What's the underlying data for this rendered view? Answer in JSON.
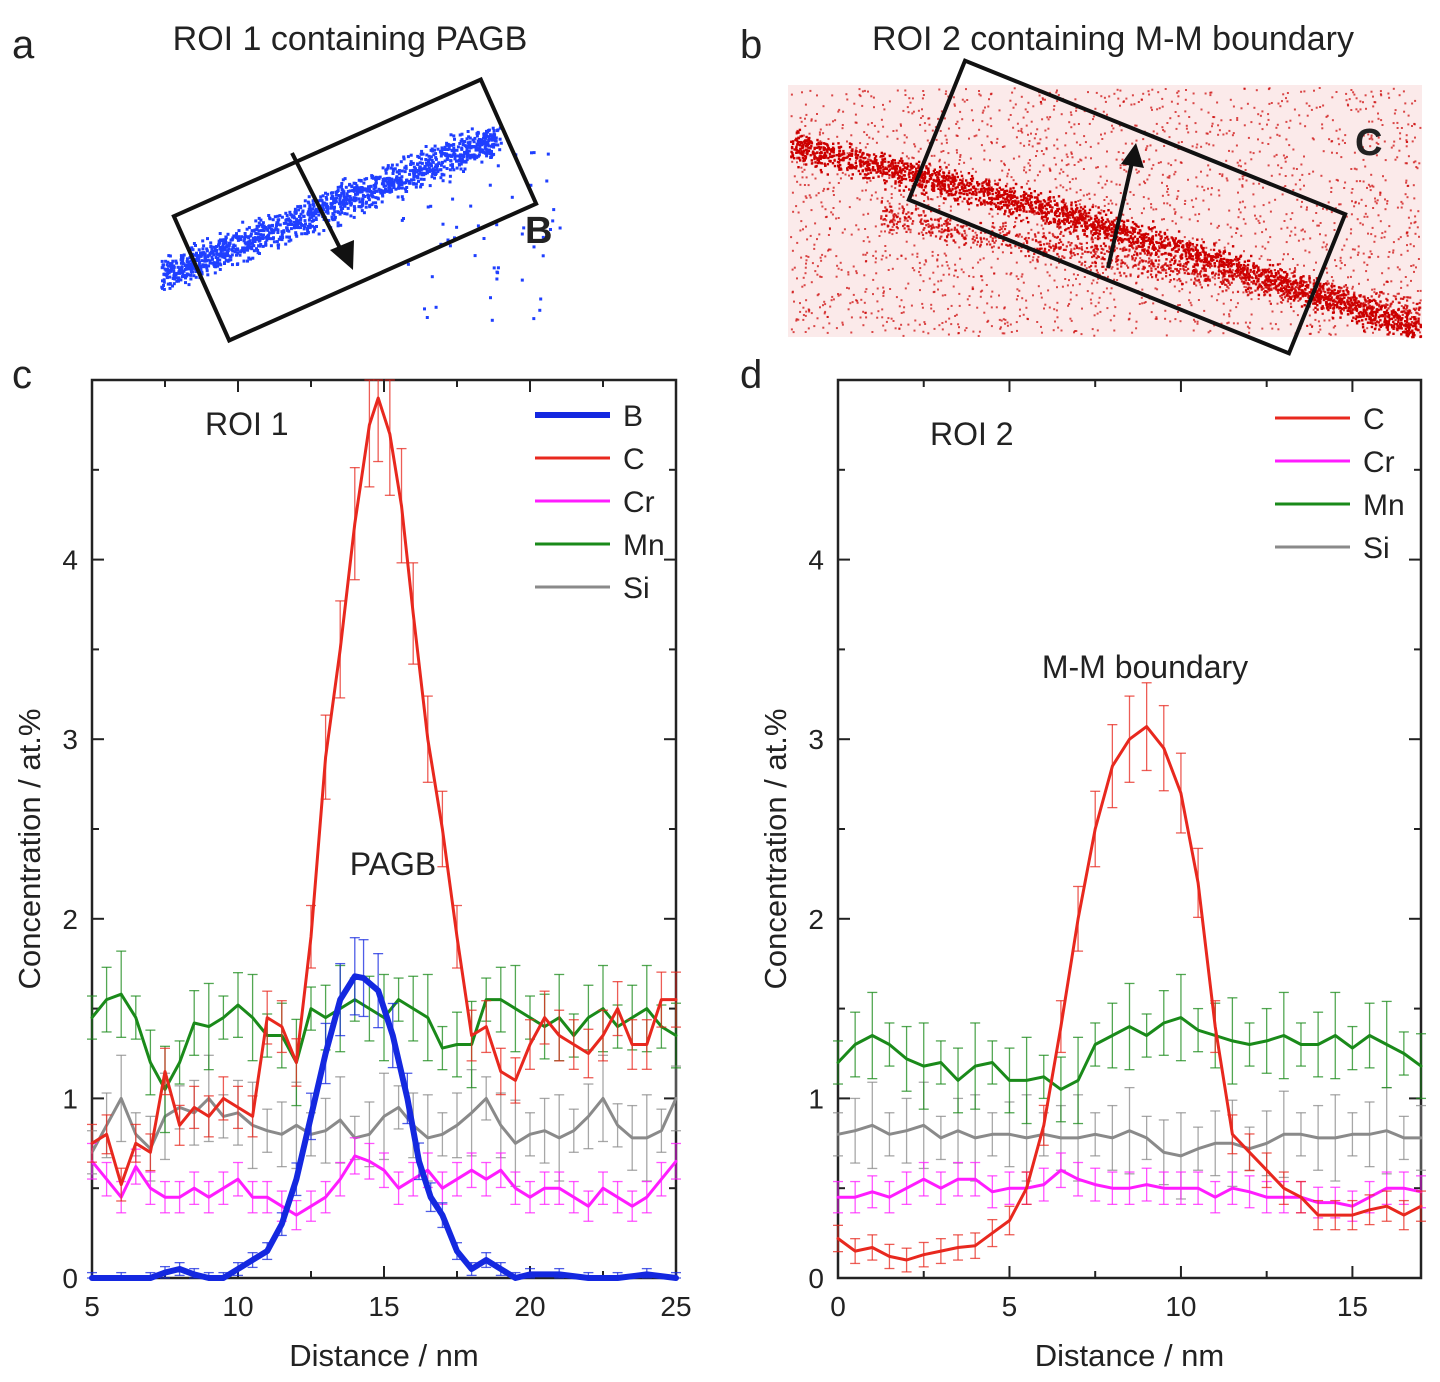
{
  "panels": {
    "a": {
      "letter": "a",
      "title": "ROI 1 containing PAGB",
      "element_label": "B",
      "dot_color": "#1f3fff",
      "label_color": "#2b2bd0"
    },
    "b": {
      "letter": "b",
      "title": "ROI 2 containing M-M boundary",
      "element_label": "C",
      "dot_color": "#cc0000",
      "label_color": "#d01818"
    }
  },
  "chart_data": [
    {
      "type": "line",
      "letter": "c",
      "annotation": "ROI 1",
      "feature_label": "PAGB",
      "xlabel": "Distance / nm",
      "ylabel": "Concentration / at.%",
      "xlim": [
        5,
        25
      ],
      "ylim": [
        0,
        5
      ],
      "xticks": [
        5,
        10,
        15,
        20,
        25
      ],
      "yticks": [
        0,
        1,
        2,
        3,
        4
      ],
      "legend_position": "top-right",
      "series": [
        {
          "name": "B",
          "color": "#1428e0",
          "width": 6,
          "x": [
            5,
            6,
            7,
            7.5,
            8,
            8.5,
            9,
            9.5,
            10,
            10.5,
            11,
            11.5,
            12,
            12.5,
            13,
            13.5,
            14,
            14.3,
            14.8,
            15.3,
            15.8,
            16.2,
            16.6,
            17,
            17.5,
            18,
            18.5,
            19,
            19.5,
            20,
            21,
            22,
            23,
            24,
            25
          ],
          "y": [
            0,
            0,
            0,
            0.03,
            0.05,
            0.02,
            0,
            0,
            0.05,
            0.1,
            0.15,
            0.3,
            0.55,
            0.9,
            1.25,
            1.55,
            1.68,
            1.67,
            1.6,
            1.35,
            1.0,
            0.65,
            0.45,
            0.35,
            0.15,
            0.05,
            0.1,
            0.05,
            0,
            0.02,
            0.02,
            0,
            0,
            0.02,
            0
          ]
        },
        {
          "name": "C",
          "color": "#e8281e",
          "width": 3,
          "x": [
            5,
            5.5,
            6,
            6.5,
            7,
            7.5,
            8,
            8.5,
            9,
            9.5,
            10,
            10.5,
            11,
            11.5,
            12,
            12.5,
            13,
            13.5,
            14,
            14.5,
            14.8,
            15.2,
            15.6,
            16,
            16.5,
            17,
            17.5,
            18,
            18.5,
            19,
            19.5,
            20,
            20.5,
            21,
            21.5,
            22,
            22.5,
            23,
            23.5,
            24,
            24.5,
            25
          ],
          "y": [
            0.75,
            0.8,
            0.52,
            0.75,
            0.7,
            1.15,
            0.85,
            0.95,
            0.9,
            1.0,
            0.95,
            0.9,
            1.45,
            1.4,
            1.2,
            1.9,
            2.9,
            3.5,
            4.2,
            4.75,
            4.9,
            4.7,
            4.3,
            3.7,
            3.0,
            2.5,
            1.9,
            1.35,
            1.4,
            1.15,
            1.1,
            1.3,
            1.45,
            1.35,
            1.3,
            1.25,
            1.35,
            1.5,
            1.3,
            1.3,
            1.55,
            1.55
          ]
        },
        {
          "name": "Cr",
          "color": "#ff1cff",
          "width": 3,
          "x": [
            5,
            5.5,
            6,
            6.5,
            7,
            7.5,
            8,
            8.5,
            9,
            9.5,
            10,
            10.5,
            11,
            11.5,
            12,
            12.5,
            13,
            13.5,
            14,
            14.5,
            15,
            15.5,
            16,
            16.5,
            17,
            17.5,
            18,
            18.5,
            19,
            19.5,
            20,
            20.5,
            21,
            21.5,
            22,
            22.5,
            23,
            23.5,
            24,
            24.5,
            25
          ],
          "y": [
            0.65,
            0.55,
            0.45,
            0.62,
            0.5,
            0.45,
            0.45,
            0.5,
            0.45,
            0.5,
            0.55,
            0.45,
            0.45,
            0.4,
            0.35,
            0.4,
            0.45,
            0.55,
            0.68,
            0.65,
            0.6,
            0.5,
            0.55,
            0.6,
            0.5,
            0.55,
            0.6,
            0.55,
            0.6,
            0.5,
            0.45,
            0.5,
            0.5,
            0.45,
            0.4,
            0.5,
            0.45,
            0.4,
            0.45,
            0.55,
            0.65
          ]
        },
        {
          "name": "Mn",
          "color": "#1a8a1a",
          "width": 3,
          "x": [
            5,
            5.5,
            6,
            6.5,
            7,
            7.5,
            8,
            8.5,
            9,
            9.5,
            10,
            10.5,
            11,
            11.5,
            12,
            12.5,
            13,
            13.5,
            14,
            14.5,
            15,
            15.5,
            16,
            16.5,
            17,
            17.5,
            18,
            18.5,
            19,
            19.5,
            20,
            20.5,
            21,
            21.5,
            22,
            22.5,
            23,
            23.5,
            24,
            24.5,
            25
          ],
          "y": [
            1.45,
            1.55,
            1.58,
            1.45,
            1.2,
            1.05,
            1.2,
            1.42,
            1.4,
            1.45,
            1.52,
            1.45,
            1.35,
            1.35,
            1.2,
            1.5,
            1.45,
            1.5,
            1.55,
            1.5,
            1.45,
            1.55,
            1.5,
            1.45,
            1.28,
            1.3,
            1.3,
            1.55,
            1.55,
            1.5,
            1.45,
            1.4,
            1.45,
            1.35,
            1.45,
            1.5,
            1.4,
            1.45,
            1.5,
            1.4,
            1.35
          ]
        },
        {
          "name": "Si",
          "color": "#8a8a8a",
          "width": 3,
          "x": [
            5,
            5.5,
            6,
            6.5,
            7,
            7.5,
            8,
            8.5,
            9,
            9.5,
            10,
            10.5,
            11,
            11.5,
            12,
            12.5,
            13,
            13.5,
            14,
            14.5,
            15,
            15.5,
            16,
            16.5,
            17,
            17.5,
            18,
            18.5,
            19,
            19.5,
            20,
            20.5,
            21,
            21.5,
            22,
            22.5,
            23,
            23.5,
            24,
            24.5,
            25
          ],
          "y": [
            0.7,
            0.85,
            1.0,
            0.8,
            0.72,
            0.9,
            0.95,
            0.92,
            1.0,
            0.9,
            0.92,
            0.85,
            0.82,
            0.8,
            0.85,
            0.8,
            0.82,
            0.88,
            0.78,
            0.8,
            0.9,
            0.95,
            0.85,
            0.78,
            0.8,
            0.85,
            0.92,
            1.0,
            0.85,
            0.75,
            0.8,
            0.82,
            0.78,
            0.82,
            0.9,
            1.0,
            0.85,
            0.78,
            0.78,
            0.82,
            1.0
          ]
        }
      ]
    },
    {
      "type": "line",
      "letter": "d",
      "annotation": "ROI 2",
      "feature_label": "M-M boundary",
      "xlabel": "Distance / nm",
      "ylabel": "Concentration / at.%",
      "xlim": [
        0,
        17
      ],
      "ylim": [
        0,
        5
      ],
      "xticks": [
        0,
        5,
        10,
        15
      ],
      "yticks": [
        0,
        1,
        2,
        3,
        4
      ],
      "legend_position": "top-right",
      "series": [
        {
          "name": "C",
          "color": "#e8281e",
          "width": 3,
          "x": [
            0,
            0.5,
            1,
            1.5,
            2,
            2.5,
            3,
            3.5,
            4,
            4.5,
            5,
            5.5,
            6,
            6.5,
            7,
            7.5,
            8,
            8.5,
            9,
            9.5,
            10,
            10.5,
            11,
            11.5,
            12,
            12.5,
            13,
            13.5,
            14,
            14.5,
            15,
            15.5,
            16,
            16.5,
            17
          ],
          "y": [
            0.22,
            0.15,
            0.17,
            0.12,
            0.1,
            0.13,
            0.15,
            0.17,
            0.18,
            0.25,
            0.32,
            0.5,
            0.85,
            1.4,
            2.0,
            2.5,
            2.85,
            3.0,
            3.07,
            2.95,
            2.7,
            2.2,
            1.4,
            0.8,
            0.7,
            0.6,
            0.5,
            0.45,
            0.35,
            0.35,
            0.35,
            0.38,
            0.4,
            0.35,
            0.4
          ]
        },
        {
          "name": "Cr",
          "color": "#ff1cff",
          "width": 3,
          "x": [
            0,
            0.5,
            1,
            1.5,
            2,
            2.5,
            3,
            3.5,
            4,
            4.5,
            5,
            5.5,
            6,
            6.5,
            7,
            7.5,
            8,
            8.5,
            9,
            9.5,
            10,
            10.5,
            11,
            11.5,
            12,
            12.5,
            13,
            13.5,
            14,
            14.5,
            15,
            15.5,
            16,
            16.5,
            17
          ],
          "y": [
            0.45,
            0.45,
            0.48,
            0.45,
            0.5,
            0.55,
            0.5,
            0.55,
            0.55,
            0.48,
            0.5,
            0.5,
            0.52,
            0.6,
            0.55,
            0.52,
            0.5,
            0.5,
            0.52,
            0.5,
            0.5,
            0.5,
            0.45,
            0.5,
            0.48,
            0.45,
            0.45,
            0.45,
            0.42,
            0.42,
            0.4,
            0.45,
            0.5,
            0.5,
            0.48
          ]
        },
        {
          "name": "Mn",
          "color": "#1a8a1a",
          "width": 3,
          "x": [
            0,
            0.5,
            1,
            1.5,
            2,
            2.5,
            3,
            3.5,
            4,
            4.5,
            5,
            5.5,
            6,
            6.5,
            7,
            7.5,
            8,
            8.5,
            9,
            9.5,
            10,
            10.5,
            11,
            11.5,
            12,
            12.5,
            13,
            13.5,
            14,
            14.5,
            15,
            15.5,
            16,
            16.5,
            17
          ],
          "y": [
            1.2,
            1.3,
            1.35,
            1.3,
            1.22,
            1.18,
            1.2,
            1.1,
            1.18,
            1.2,
            1.1,
            1.1,
            1.12,
            1.05,
            1.1,
            1.3,
            1.35,
            1.4,
            1.35,
            1.42,
            1.45,
            1.38,
            1.35,
            1.32,
            1.3,
            1.32,
            1.35,
            1.3,
            1.3,
            1.35,
            1.28,
            1.35,
            1.3,
            1.25,
            1.18
          ]
        },
        {
          "name": "Si",
          "color": "#8a8a8a",
          "width": 3,
          "x": [
            0,
            0.5,
            1,
            1.5,
            2,
            2.5,
            3,
            3.5,
            4,
            4.5,
            5,
            5.5,
            6,
            6.5,
            7,
            7.5,
            8,
            8.5,
            9,
            9.5,
            10,
            10.5,
            11,
            11.5,
            12,
            12.5,
            13,
            13.5,
            14,
            14.5,
            15,
            15.5,
            16,
            16.5,
            17
          ],
          "y": [
            0.8,
            0.82,
            0.85,
            0.8,
            0.82,
            0.85,
            0.78,
            0.82,
            0.78,
            0.8,
            0.8,
            0.78,
            0.8,
            0.78,
            0.78,
            0.8,
            0.78,
            0.82,
            0.78,
            0.7,
            0.68,
            0.72,
            0.75,
            0.75,
            0.72,
            0.75,
            0.8,
            0.8,
            0.78,
            0.78,
            0.8,
            0.8,
            0.82,
            0.78,
            0.78
          ]
        }
      ]
    }
  ]
}
